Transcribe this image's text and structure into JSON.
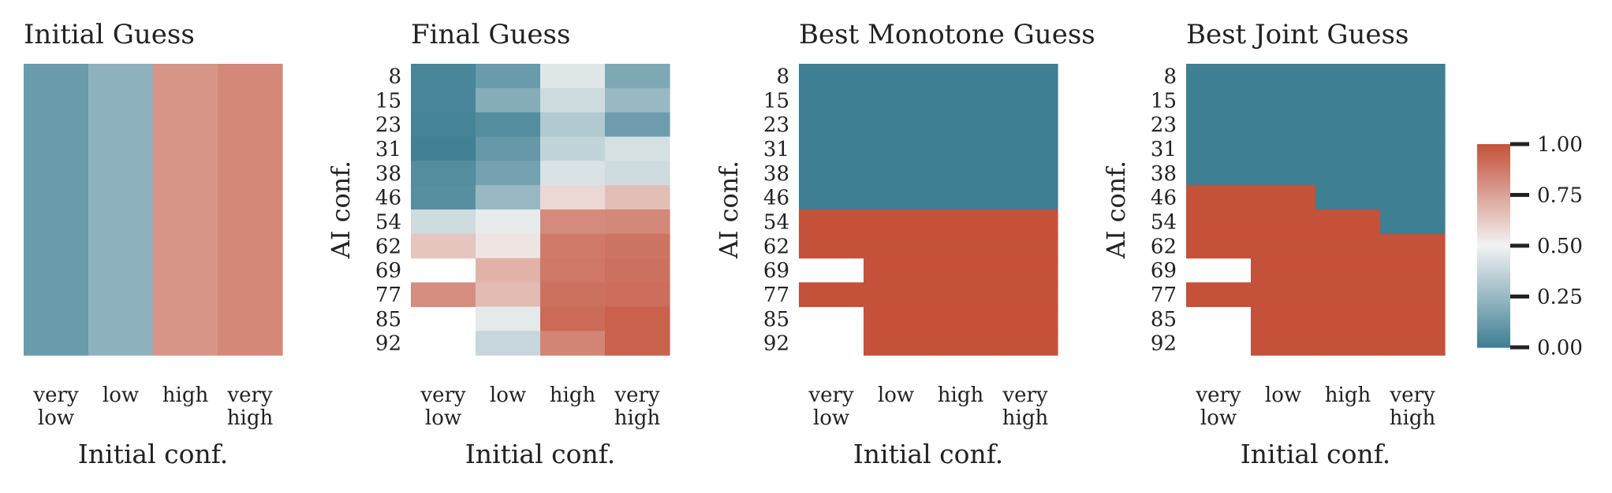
{
  "figure": {
    "colorbar": {
      "min": 0,
      "max": 1,
      "ticks": [
        0,
        0.25,
        0.5,
        0.75,
        1
      ],
      "tick_labels": [
        "0.00",
        "0.25",
        "0.50",
        "0.75",
        "1.00"
      ],
      "colormap": {
        "low": "#3e7f93",
        "mid": "#f2f2f2",
        "high": "#c4513a"
      }
    }
  },
  "chart_data": [
    {
      "type": "heatmap",
      "title": "Initial Guess",
      "xlabel": "Initial conf.",
      "ylabel": "",
      "x_categories": [
        [
          "very",
          "low"
        ],
        [
          "low"
        ],
        [
          "high"
        ],
        [
          "very",
          "high"
        ]
      ],
      "y_categories": [],
      "values": [
        [
          0.12,
          0.22,
          0.79,
          0.83
        ]
      ]
    },
    {
      "type": "heatmap",
      "title": "Final Guess",
      "xlabel": "Initial conf.",
      "ylabel": "AI conf.",
      "x_categories": [
        [
          "very",
          "low"
        ],
        [
          "low"
        ],
        [
          "high"
        ],
        [
          "very",
          "high"
        ]
      ],
      "y_categories": [
        "8",
        "15",
        "23",
        "31",
        "38",
        "46",
        "54",
        "62",
        "69",
        "77",
        "85",
        "92"
      ],
      "values": [
        [
          0.03,
          0.12,
          0.45,
          0.18
        ],
        [
          0.03,
          0.2,
          0.4,
          0.25
        ],
        [
          0.02,
          0.06,
          0.32,
          0.13
        ],
        [
          0.01,
          0.11,
          0.37,
          0.42
        ],
        [
          0.06,
          0.15,
          0.43,
          0.4
        ],
        [
          0.07,
          0.25,
          0.58,
          0.66
        ],
        [
          0.4,
          0.47,
          0.82,
          0.83
        ],
        [
          0.64,
          0.54,
          0.87,
          0.89
        ],
        [
          null,
          0.7,
          0.88,
          0.9
        ],
        [
          0.81,
          0.67,
          0.9,
          0.91
        ],
        [
          null,
          0.46,
          0.92,
          0.95
        ],
        [
          null,
          0.38,
          0.84,
          0.95
        ]
      ]
    },
    {
      "type": "heatmap",
      "title": "Best Monotone Guess",
      "xlabel": "Initial conf.",
      "ylabel": "AI conf.",
      "x_categories": [
        [
          "very",
          "low"
        ],
        [
          "low"
        ],
        [
          "high"
        ],
        [
          "very",
          "high"
        ]
      ],
      "y_categories": [
        "8",
        "15",
        "23",
        "31",
        "38",
        "46",
        "54",
        "62",
        "69",
        "77",
        "85",
        "92"
      ],
      "values": [
        [
          0,
          0,
          0,
          0
        ],
        [
          0,
          0,
          0,
          0
        ],
        [
          0,
          0,
          0,
          0
        ],
        [
          0,
          0,
          0,
          0
        ],
        [
          0,
          0,
          0,
          0
        ],
        [
          0,
          0,
          0,
          0
        ],
        [
          1,
          1,
          1,
          1
        ],
        [
          1,
          1,
          1,
          1
        ],
        [
          null,
          1,
          1,
          1
        ],
        [
          1,
          1,
          1,
          1
        ],
        [
          null,
          1,
          1,
          1
        ],
        [
          null,
          1,
          1,
          1
        ]
      ]
    },
    {
      "type": "heatmap",
      "title": "Best Joint Guess",
      "xlabel": "Initial conf.",
      "ylabel": "AI conf.",
      "x_categories": [
        [
          "very",
          "low"
        ],
        [
          "low"
        ],
        [
          "high"
        ],
        [
          "very",
          "high"
        ]
      ],
      "y_categories": [
        "8",
        "15",
        "23",
        "31",
        "38",
        "46",
        "54",
        "62",
        "69",
        "77",
        "85",
        "92"
      ],
      "values": [
        [
          0,
          0,
          0,
          0
        ],
        [
          0,
          0,
          0,
          0
        ],
        [
          0,
          0,
          0,
          0
        ],
        [
          0,
          0,
          0,
          0
        ],
        [
          0,
          0,
          0,
          0
        ],
        [
          1,
          1,
          0,
          0
        ],
        [
          1,
          1,
          1,
          0
        ],
        [
          1,
          1,
          1,
          1
        ],
        [
          null,
          1,
          1,
          1
        ],
        [
          1,
          1,
          1,
          1
        ],
        [
          null,
          1,
          1,
          1
        ],
        [
          null,
          1,
          1,
          1
        ]
      ]
    }
  ]
}
